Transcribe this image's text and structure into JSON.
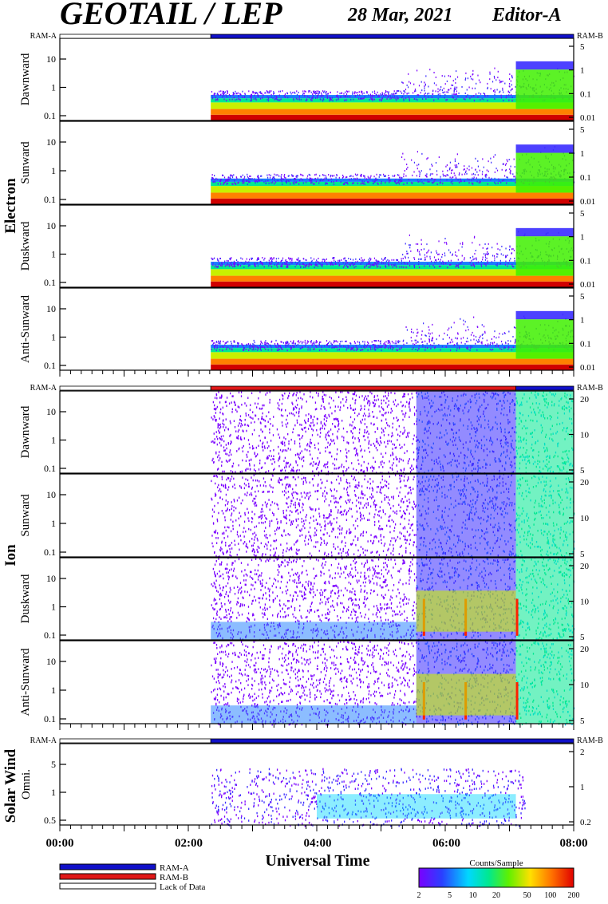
{
  "header": {
    "title": "GEOTAIL / LEP",
    "date": "28 Mar, 2021",
    "editor": "Editor-A"
  },
  "groups": {
    "electron": "Electron",
    "ion": "Ion",
    "solar_wind": "Solar Wind"
  },
  "ram_labels": {
    "left": "RAM-A",
    "right": "RAM-B"
  },
  "xaxis": {
    "title": "Universal Time",
    "ticks": [
      "00:00",
      "02:00",
      "04:00",
      "06:00",
      "08:00"
    ]
  },
  "legend": {
    "ram_a": "RAM-A",
    "ram_b": "RAM-B",
    "lack": "Lack of Data"
  },
  "colorbar": {
    "title": "Counts/Sample",
    "ticks": [
      "2",
      "5",
      "10",
      "20",
      "50",
      "100",
      "200"
    ]
  },
  "colors": {
    "ram_a": "#1010c8",
    "ram_b": "#e01818",
    "lack": "#ffffff",
    "scale": [
      "#7a00ff",
      "#3a2cff",
      "#1a7cff",
      "#00d8ff",
      "#00e890",
      "#40f000",
      "#c8f000",
      "#ffd000",
      "#ff8000",
      "#ff2000",
      "#d00000"
    ]
  },
  "chart_data": {
    "type": "heatmap",
    "x_range_hours": [
      0,
      8
    ],
    "data_start_hour": 2.35,
    "panels": [
      {
        "group": "electron",
        "label": "Dawnward",
        "left_ticks": [
          "10",
          "1",
          "0.1"
        ],
        "right_ticks": [
          "5",
          "1",
          "0.1",
          "0.01"
        ]
      },
      {
        "group": "electron",
        "label": "Sunward",
        "left_ticks": [
          "10",
          "1",
          "0.1"
        ],
        "right_ticks": [
          "5",
          "1",
          "0.1",
          "0.01"
        ]
      },
      {
        "group": "electron",
        "label": "Duskward",
        "left_ticks": [
          "10",
          "1",
          "0.1"
        ],
        "right_ticks": [
          "5",
          "1",
          "0.1",
          "0.01"
        ]
      },
      {
        "group": "electron",
        "label": "Anti-Sunward",
        "left_ticks": [
          "10",
          "1",
          "0.1"
        ],
        "right_ticks": [
          "5",
          "1",
          "0.1",
          "0.01"
        ]
      },
      {
        "group": "ion",
        "label": "Dawnward",
        "left_ticks": [
          "10",
          "1",
          "0.1"
        ],
        "right_ticks": [
          "20",
          "10",
          "5"
        ]
      },
      {
        "group": "ion",
        "label": "Sunward",
        "left_ticks": [
          "10",
          "1",
          "0.1"
        ],
        "right_ticks": [
          "20",
          "10",
          "5"
        ]
      },
      {
        "group": "ion",
        "label": "Duskward",
        "left_ticks": [
          "10",
          "1",
          "0.1"
        ],
        "right_ticks": [
          "20",
          "10",
          "5"
        ]
      },
      {
        "group": "ion",
        "label": "Anti-Sunward",
        "left_ticks": [
          "10",
          "1",
          "0.1"
        ],
        "right_ticks": [
          "20",
          "10",
          "5"
        ]
      },
      {
        "group": "solar_wind",
        "label": "Omni.",
        "left_ticks": [
          "5",
          "1",
          "0.5"
        ],
        "right_ticks": [
          "2",
          "1",
          "0.2"
        ]
      }
    ],
    "ram_bars": [
      {
        "group": "electron",
        "segments": [
          {
            "start": 0,
            "end": 2.35,
            "state": "lack"
          },
          {
            "start": 2.35,
            "end": 8,
            "state": "ram_a"
          }
        ]
      },
      {
        "group": "ion",
        "segments": [
          {
            "start": 0,
            "end": 2.35,
            "state": "lack"
          },
          {
            "start": 2.35,
            "end": 7.1,
            "state": "ram_b"
          },
          {
            "start": 7.1,
            "end": 8,
            "state": "ram_a"
          }
        ]
      },
      {
        "group": "solar_wind",
        "segments": [
          {
            "start": 0,
            "end": 2.35,
            "state": "lack"
          },
          {
            "start": 2.35,
            "end": 8,
            "state": "ram_a"
          }
        ]
      }
    ]
  }
}
